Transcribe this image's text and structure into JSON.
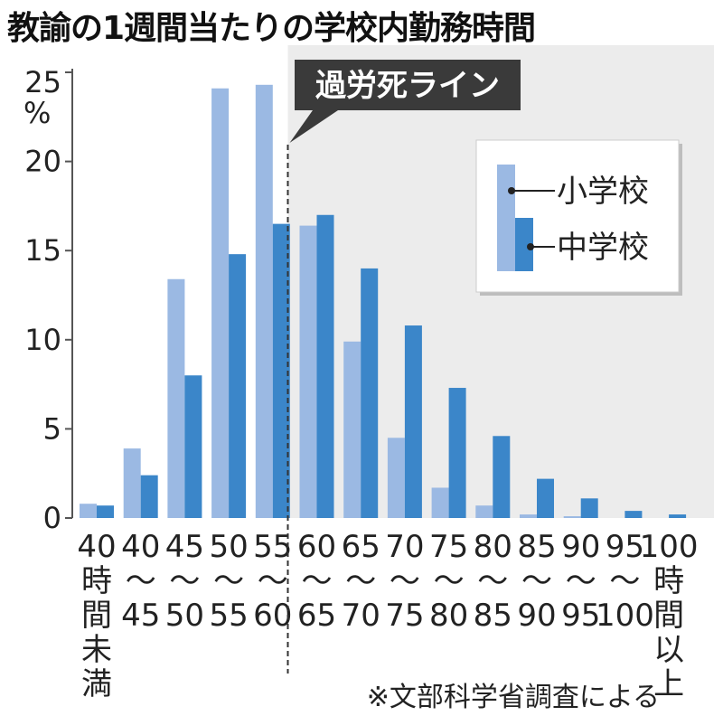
{
  "chart_data": {
    "type": "bar",
    "title": "教諭の1週間当たりの学校内勤務時間",
    "yunit": "%",
    "ylim": [
      0,
      25
    ],
    "yticks": [
      0,
      5,
      10,
      15,
      20,
      25
    ],
    "categories": [
      [
        "40",
        "時",
        "間",
        "未",
        "満"
      ],
      [
        "40",
        "〜",
        "45"
      ],
      [
        "45",
        "〜",
        "50"
      ],
      [
        "50",
        "〜",
        "55"
      ],
      [
        "55",
        "〜",
        "60"
      ],
      [
        "60",
        "〜",
        "65"
      ],
      [
        "65",
        "〜",
        "70"
      ],
      [
        "70",
        "〜",
        "75"
      ],
      [
        "75",
        "〜",
        "80"
      ],
      [
        "80",
        "〜",
        "85"
      ],
      [
        "85",
        "〜",
        "90"
      ],
      [
        "90",
        "〜",
        "95"
      ],
      [
        "95",
        "〜",
        "100"
      ],
      [
        "100",
        "時",
        "間",
        "以",
        "上"
      ]
    ],
    "series": [
      {
        "name": "小学校",
        "color": "#9bb9e3",
        "values": [
          0.8,
          3.9,
          13.4,
          24.1,
          24.3,
          16.4,
          9.9,
          4.5,
          1.7,
          0.7,
          0.2,
          0.1,
          0.0,
          0.0
        ]
      },
      {
        "name": "中学校",
        "color": "#3b86c9",
        "values": [
          0.7,
          2.4,
          8.0,
          14.8,
          16.5,
          17.0,
          14.0,
          10.8,
          7.3,
          4.6,
          2.2,
          1.1,
          0.4,
          0.2
        ]
      }
    ],
    "threshold": {
      "label": "過労死ライン",
      "after_category_index": 4
    },
    "legend_position": "top-right",
    "source": "※文部科学省調査による"
  }
}
